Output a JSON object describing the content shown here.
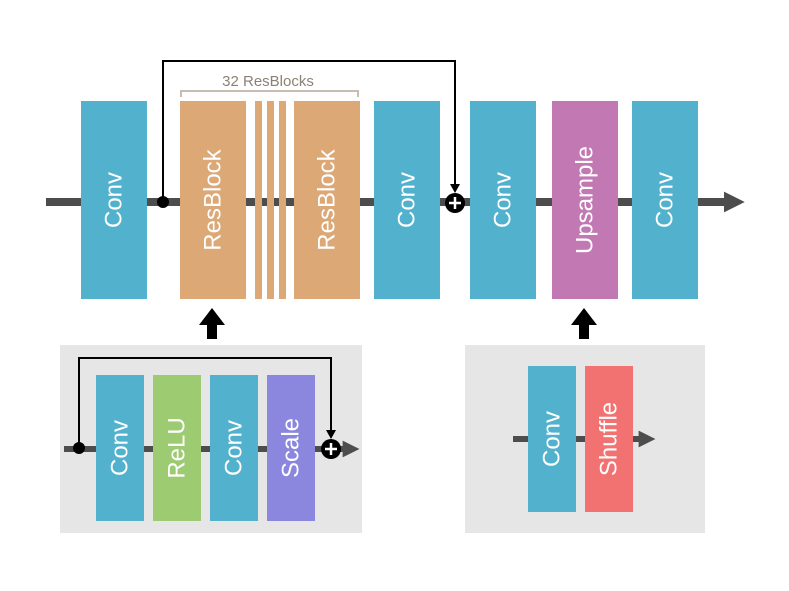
{
  "colors": {
    "conv": "#52b1cc",
    "resblock": "#dba876",
    "upsample": "#c278b3",
    "relu": "#9dcb71",
    "scale": "#8b87de",
    "shuffle": "#f27171",
    "arrow": "#4d4d4d",
    "panel": "#e6e6e6",
    "brace": "#c7beb1",
    "line": "#000000"
  },
  "main": {
    "blocks": [
      {
        "label": "Conv",
        "kind": "conv"
      },
      {
        "label": "ResBlock",
        "kind": "resblock"
      },
      {
        "label": "ResBlock",
        "kind": "resblock"
      },
      {
        "label": "Conv",
        "kind": "conv"
      },
      {
        "label": "Conv",
        "kind": "conv"
      },
      {
        "label": "Upsample",
        "kind": "upsample"
      },
      {
        "label": "Conv",
        "kind": "conv"
      }
    ],
    "brace_label": "32 ResBlocks"
  },
  "resblock_detail": {
    "blocks": [
      {
        "label": "Conv",
        "kind": "conv"
      },
      {
        "label": "ReLU",
        "kind": "relu"
      },
      {
        "label": "Conv",
        "kind": "conv"
      },
      {
        "label": "Scale",
        "kind": "scale"
      }
    ]
  },
  "upsample_detail": {
    "blocks": [
      {
        "label": "Conv",
        "kind": "conv"
      },
      {
        "label": "Shuffle",
        "kind": "shuffle"
      }
    ]
  }
}
